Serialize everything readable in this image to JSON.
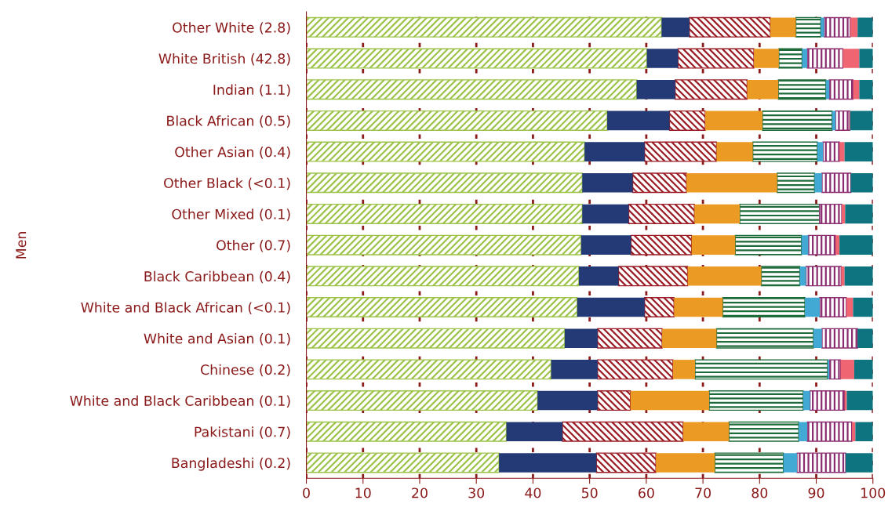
{
  "chart_data": {
    "type": "bar",
    "orientation": "horizontal",
    "stacked": true,
    "ylabel": "Men",
    "categories": [
      "Other White (2.8)",
      "White British (42.8)",
      "Indian (1.1)",
      "Black African (0.5)",
      "Other Asian (0.4)",
      "Other Black (<0.1)",
      "Other Mixed (0.1)",
      "Other (0.7)",
      "Black Caribbean (0.4)",
      "White and Black African (<0.1)",
      "White and Asian (0.1)",
      "Chinese (0.2)",
      "White and Black Caribbean (0.1)",
      "Pakistani (0.7)",
      "Bangladeshi (0.2)"
    ],
    "series": [
      {
        "color": "#9dc34a",
        "values": [
          62.7,
          60.1,
          58.3,
          53.1,
          49.1,
          48.7,
          48.7,
          48.5,
          48.1,
          47.8,
          45.6,
          43.2,
          40.8,
          35.3,
          34.0
        ]
      },
      {
        "color": "#233a77",
        "values": [
          4.9,
          5.5,
          6.8,
          11.0,
          10.6,
          8.9,
          8.2,
          8.8,
          7.0,
          11.9,
          5.8,
          8.2,
          10.6,
          9.9,
          17.2
        ]
      },
      {
        "color": "#9b1c24",
        "values": [
          14.3,
          13.4,
          12.7,
          6.3,
          12.7,
          9.5,
          11.6,
          10.7,
          12.2,
          5.2,
          11.4,
          13.3,
          5.8,
          21.3,
          10.5
        ]
      },
      {
        "color": "#eb9a24",
        "values": [
          4.5,
          4.4,
          5.5,
          10.1,
          6.4,
          16.0,
          8.0,
          7.7,
          13.0,
          8.6,
          9.6,
          3.9,
          13.9,
          8.1,
          10.4
        ]
      },
      {
        "color": "#1e6b3a",
        "values": [
          4.4,
          4.1,
          8.4,
          12.3,
          11.4,
          6.6,
          14.1,
          11.7,
          6.8,
          14.5,
          17.1,
          23.4,
          16.6,
          12.3,
          12.1
        ]
      },
      {
        "color": "#42a9d4",
        "values": [
          0.6,
          0.9,
          0.6,
          0.6,
          1.0,
          1.3,
          0,
          1.2,
          1.1,
          2.6,
          1.5,
          0.3,
          1.2,
          1.5,
          2.4
        ]
      },
      {
        "color": "#8a2c6f",
        "values": [
          4.6,
          6.3,
          4.2,
          2.5,
          2.9,
          5.1,
          3.9,
          4.8,
          6.2,
          4.7,
          6.3,
          2.0,
          6.1,
          7.9,
          8.6
        ]
      },
      {
        "color": "#ef6571",
        "values": [
          1.3,
          2.9,
          1.1,
          0.1,
          0.9,
          0,
          0.6,
          0.7,
          0.6,
          1.2,
          0,
          2.4,
          0.4,
          0.6,
          0
        ]
      },
      {
        "color": "#0e7480",
        "values": [
          2.7,
          2.4,
          2.4,
          4.0,
          5.0,
          3.9,
          4.9,
          5.9,
          5.0,
          3.5,
          2.7,
          3.3,
          4.6,
          3.1,
          4.8
        ]
      }
    ],
    "xlim": [
      0,
      100
    ],
    "xticks": [
      0,
      10,
      20,
      30,
      40,
      50,
      60,
      70,
      80,
      90,
      100
    ],
    "grid": "x"
  }
}
